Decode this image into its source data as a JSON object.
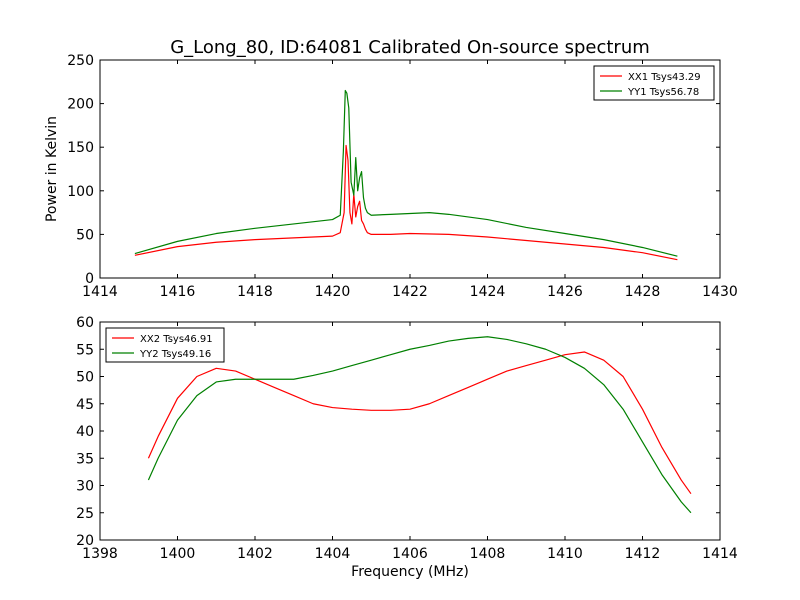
{
  "figure": {
    "title": "G_Long_80, ID:64081 Calibrated On-source spectrum"
  },
  "chart_data": [
    {
      "type": "line",
      "title": "G_Long_80, ID:64081 Calibrated On-source spectrum",
      "xlabel": "",
      "ylabel": "Power in Kelvin",
      "xlim": [
        1414,
        1430
      ],
      "ylim": [
        0,
        250
      ],
      "xticks": [
        1414,
        1416,
        1418,
        1420,
        1422,
        1424,
        1426,
        1428,
        1430
      ],
      "yticks": [
        0,
        50,
        100,
        150,
        200,
        250
      ],
      "grid": false,
      "legend_position": "top-right",
      "series": [
        {
          "name": "XX1 Tsys43.29",
          "color": "#ff0000",
          "x": [
            1414.9,
            1416.0,
            1417.0,
            1418.0,
            1419.0,
            1420.0,
            1420.2,
            1420.3,
            1420.35,
            1420.4,
            1420.45,
            1420.5,
            1420.55,
            1420.6,
            1420.65,
            1420.7,
            1420.75,
            1420.8,
            1420.85,
            1420.9,
            1421.0,
            1421.5,
            1422.0,
            1423.0,
            1424.0,
            1425.0,
            1426.0,
            1427.0,
            1428.0,
            1428.9
          ],
          "y": [
            26,
            36,
            41,
            44,
            46,
            48,
            52,
            75,
            152,
            135,
            75,
            62,
            96,
            70,
            82,
            88,
            66,
            62,
            56,
            52,
            50,
            50,
            51,
            50,
            47,
            43,
            39,
            35,
            29,
            21
          ]
        },
        {
          "name": "YY1 Tsys56.78",
          "color": "#008000",
          "x": [
            1414.9,
            1416.0,
            1417.0,
            1418.0,
            1419.0,
            1420.0,
            1420.2,
            1420.28,
            1420.33,
            1420.37,
            1420.42,
            1420.48,
            1420.55,
            1420.6,
            1420.65,
            1420.7,
            1420.75,
            1420.8,
            1420.85,
            1420.9,
            1421.0,
            1421.5,
            1422.0,
            1422.5,
            1423.0,
            1424.0,
            1425.0,
            1426.0,
            1427.0,
            1428.0,
            1428.9
          ],
          "y": [
            28,
            42,
            51,
            57,
            62,
            67,
            72,
            145,
            215,
            212,
            195,
            110,
            95,
            138,
            100,
            115,
            122,
            92,
            80,
            75,
            72,
            73,
            74,
            75,
            73,
            67,
            58,
            51,
            44,
            35,
            25
          ]
        }
      ]
    },
    {
      "type": "line",
      "title": "",
      "xlabel": "Frequency (MHz)",
      "ylabel": "",
      "xlim": [
        1398,
        1414
      ],
      "ylim": [
        20,
        60
      ],
      "xticks": [
        1398,
        1400,
        1402,
        1404,
        1406,
        1408,
        1410,
        1412,
        1414
      ],
      "yticks": [
        20,
        25,
        30,
        35,
        40,
        45,
        50,
        55,
        60
      ],
      "grid": false,
      "legend_position": "top-left",
      "series": [
        {
          "name": "XX2 Tsys46.91",
          "color": "#ff0000",
          "x": [
            1399.25,
            1399.5,
            1400.0,
            1400.5,
            1401.0,
            1401.5,
            1402.0,
            1402.5,
            1403.0,
            1403.5,
            1404.0,
            1404.5,
            1405.0,
            1405.5,
            1406.0,
            1406.5,
            1407.0,
            1407.5,
            1408.0,
            1408.5,
            1409.0,
            1409.5,
            1410.0,
            1410.5,
            1411.0,
            1411.5,
            1412.0,
            1412.5,
            1413.0,
            1413.25
          ],
          "y": [
            35,
            39,
            46,
            50,
            51.5,
            51,
            49.5,
            48,
            46.5,
            45,
            44.3,
            44,
            43.8,
            43.8,
            44,
            45,
            46.5,
            48,
            49.5,
            51,
            52,
            53,
            54,
            54.5,
            53,
            50,
            44,
            37,
            31,
            28.5
          ]
        },
        {
          "name": "YY2 Tsys49.16",
          "color": "#008000",
          "x": [
            1399.25,
            1399.5,
            1400.0,
            1400.5,
            1401.0,
            1401.5,
            1402.0,
            1402.5,
            1403.0,
            1403.5,
            1404.0,
            1404.5,
            1405.0,
            1405.5,
            1406.0,
            1406.5,
            1407.0,
            1407.5,
            1408.0,
            1408.5,
            1409.0,
            1409.5,
            1410.0,
            1410.5,
            1411.0,
            1411.5,
            1412.0,
            1412.5,
            1413.0,
            1413.25
          ],
          "y": [
            31,
            35,
            42,
            46.5,
            49,
            49.5,
            49.5,
            49.5,
            49.5,
            50.2,
            51,
            52,
            53,
            54,
            55,
            55.7,
            56.5,
            57,
            57.3,
            56.8,
            56,
            55,
            53.5,
            51.5,
            48.5,
            44,
            38,
            32,
            27,
            25
          ]
        }
      ]
    }
  ]
}
